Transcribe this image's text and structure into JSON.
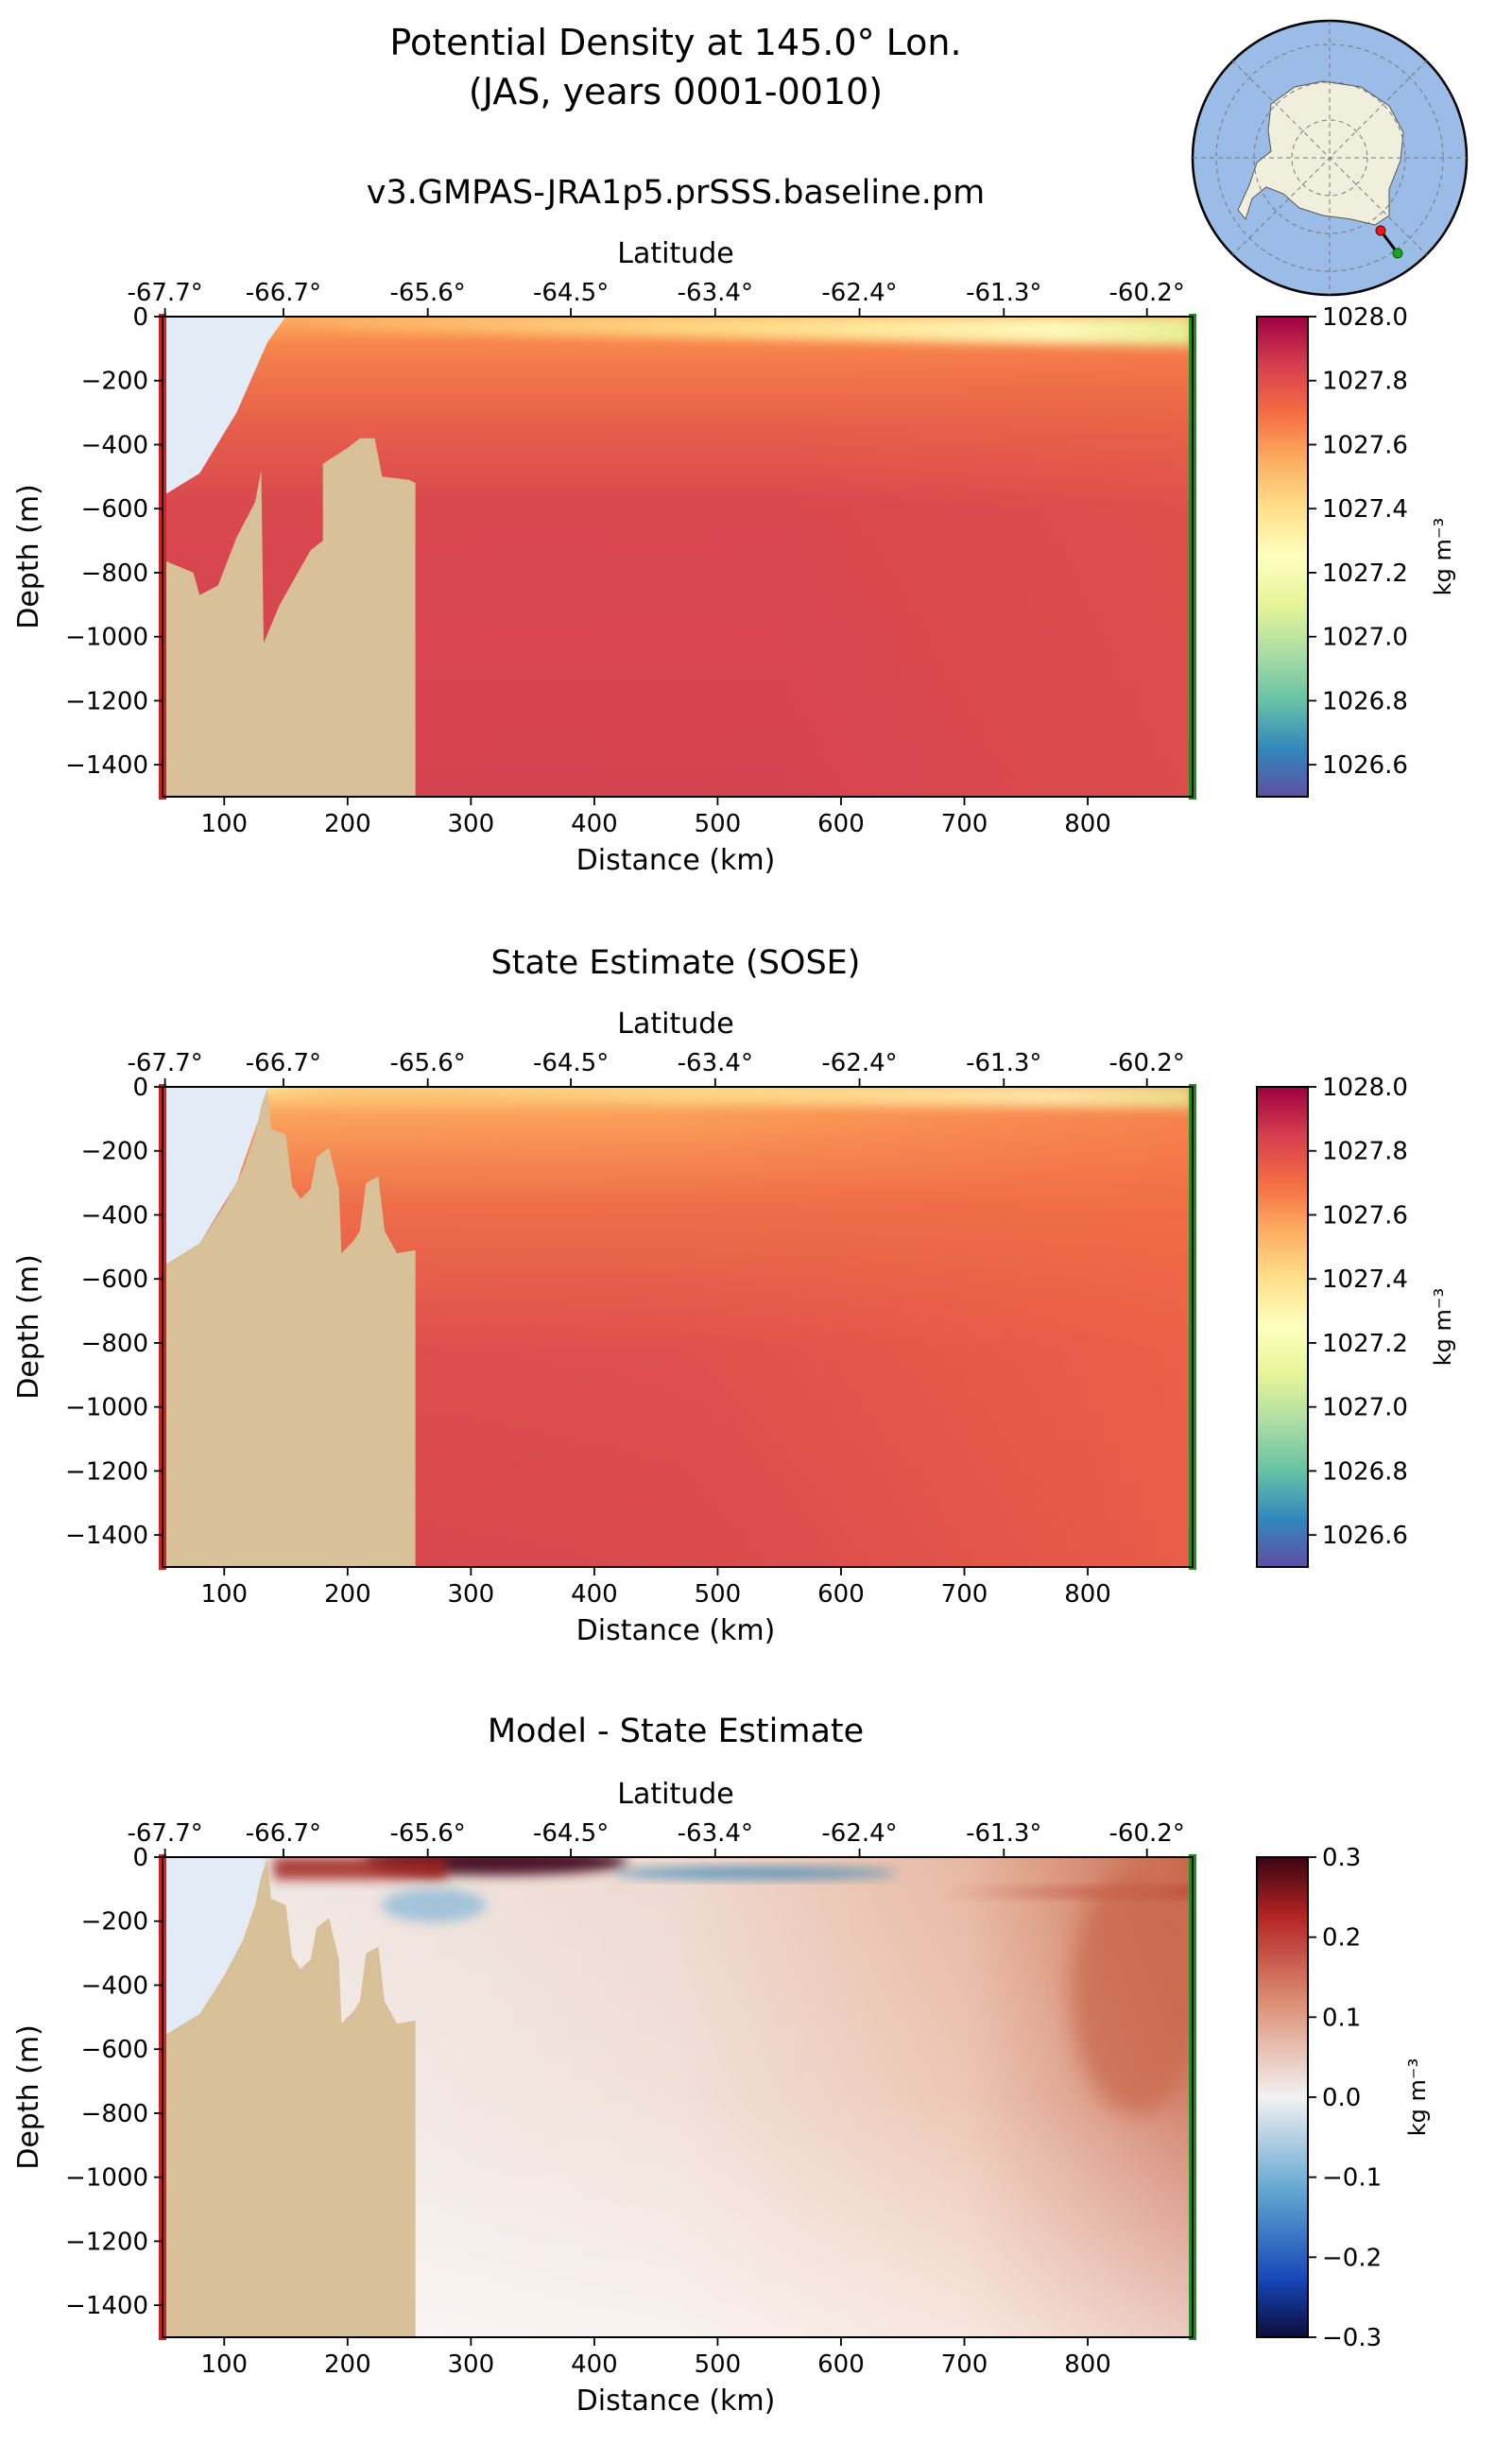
{
  "title_line1": "Potential Density at 145.0° Lon.",
  "title_line2": "(JAS, years 0001-0010)",
  "chart_data": [
    {
      "type": "heatmap",
      "title": "v3.GMPAS-JRA1p5.prSSS.baseline.pm",
      "xlabel": "Distance (km)",
      "ylabel": "Depth (m)",
      "top_xlabel": "Latitude",
      "xlim": [
        50,
        885
      ],
      "ylim": [
        -1500,
        0
      ],
      "x_ticks": [
        100,
        200,
        300,
        400,
        500,
        600,
        700,
        800
      ],
      "x_tick_labels": [
        "100",
        "200",
        "300",
        "400",
        "500",
        "600",
        "700",
        "800"
      ],
      "y_ticks": [
        0,
        -200,
        -400,
        -600,
        -800,
        -1000,
        -1200,
        -1400
      ],
      "y_tick_labels": [
        "0",
        "−200",
        "−400",
        "−600",
        "−800",
        "−1000",
        "−1200",
        "−1400"
      ],
      "lat_ticks_km": [
        52,
        148,
        265,
        381,
        498,
        615,
        732,
        848
      ],
      "lat_tick_labels": [
        "-67.7°",
        "-66.7°",
        "-65.6°",
        "-64.5°",
        "-63.4°",
        "-62.4°",
        "-61.3°",
        "-60.2°"
      ],
      "colorbar": {
        "ticks": [
          1028.0,
          1027.8,
          1027.6,
          1027.4,
          1027.2,
          1027.0,
          1026.8,
          1026.6
        ],
        "tick_labels": [
          "1028.0",
          "1027.8",
          "1027.6",
          "1027.4",
          "1027.2",
          "1027.0",
          "1026.8",
          "1026.6"
        ],
        "range": [
          1026.5,
          1028.0
        ],
        "unit": "kg m⁻³",
        "colormap": "Spectral_r"
      }
    },
    {
      "type": "heatmap",
      "title": "State Estimate (SOSE)",
      "xlabel": "Distance (km)",
      "ylabel": "Depth (m)",
      "top_xlabel": "Latitude",
      "xlim": [
        50,
        885
      ],
      "ylim": [
        -1500,
        0
      ],
      "x_ticks": [
        100,
        200,
        300,
        400,
        500,
        600,
        700,
        800
      ],
      "x_tick_labels": [
        "100",
        "200",
        "300",
        "400",
        "500",
        "600",
        "700",
        "800"
      ],
      "y_ticks": [
        0,
        -200,
        -400,
        -600,
        -800,
        -1000,
        -1200,
        -1400
      ],
      "y_tick_labels": [
        "0",
        "−200",
        "−400",
        "−600",
        "−800",
        "−1000",
        "−1200",
        "−1400"
      ],
      "lat_ticks_km": [
        52,
        148,
        265,
        381,
        498,
        615,
        732,
        848
      ],
      "lat_tick_labels": [
        "-67.7°",
        "-66.7°",
        "-65.6°",
        "-64.5°",
        "-63.4°",
        "-62.4°",
        "-61.3°",
        "-60.2°"
      ],
      "colorbar": {
        "ticks": [
          1028.0,
          1027.8,
          1027.6,
          1027.4,
          1027.2,
          1027.0,
          1026.8,
          1026.6
        ],
        "tick_labels": [
          "1028.0",
          "1027.8",
          "1027.6",
          "1027.4",
          "1027.2",
          "1027.0",
          "1026.8",
          "1026.6"
        ],
        "range": [
          1026.5,
          1028.0
        ],
        "unit": "kg m⁻³",
        "colormap": "Spectral_r"
      }
    },
    {
      "type": "heatmap",
      "title": "Model - State Estimate",
      "xlabel": "Distance (km)",
      "ylabel": "Depth (m)",
      "top_xlabel": "Latitude",
      "xlim": [
        50,
        885
      ],
      "ylim": [
        -1500,
        0
      ],
      "x_ticks": [
        100,
        200,
        300,
        400,
        500,
        600,
        700,
        800
      ],
      "x_tick_labels": [
        "100",
        "200",
        "300",
        "400",
        "500",
        "600",
        "700",
        "800"
      ],
      "y_ticks": [
        0,
        -200,
        -400,
        -600,
        -800,
        -1000,
        -1200,
        -1400
      ],
      "y_tick_labels": [
        "0",
        "−200",
        "−400",
        "−600",
        "−800",
        "−1000",
        "−1200",
        "−1400"
      ],
      "lat_ticks_km": [
        52,
        148,
        265,
        381,
        498,
        615,
        732,
        848
      ],
      "lat_tick_labels": [
        "-67.7°",
        "-66.7°",
        "-65.6°",
        "-64.5°",
        "-63.4°",
        "-62.4°",
        "-61.3°",
        "-60.2°"
      ],
      "colorbar": {
        "ticks": [
          0.3,
          0.2,
          0.1,
          0.0,
          -0.1,
          -0.2,
          -0.3
        ],
        "tick_labels": [
          "0.3",
          "0.2",
          "0.1",
          "0.0",
          "−0.1",
          "−0.2",
          "−0.3"
        ],
        "range": [
          -0.3,
          0.3
        ],
        "unit": "kg m⁻³",
        "colormap": "RdBu_r"
      }
    }
  ],
  "colors": {
    "land": "#d8c199",
    "ice_shelf": "#e2ebf6",
    "section_start": "#d62020",
    "section_end": "#1e8f1e",
    "map_ocean": "#9bbce6",
    "map_land": "#f0eedc"
  }
}
